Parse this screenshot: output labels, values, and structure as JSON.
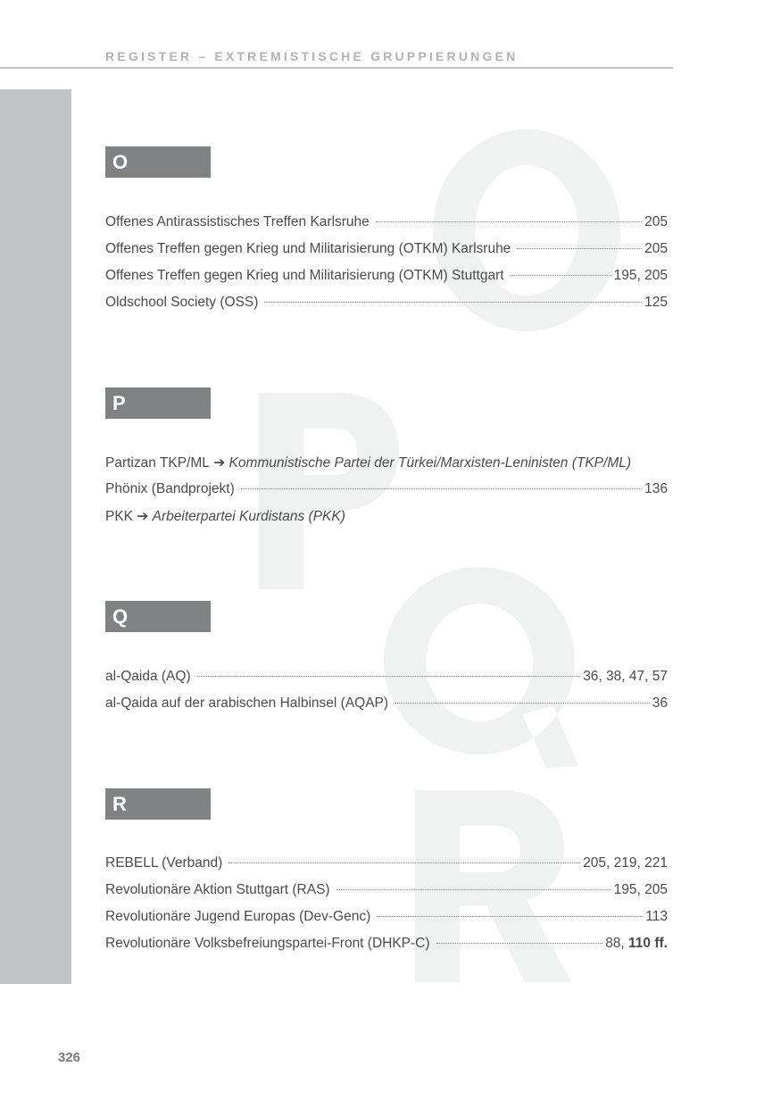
{
  "header": "REGISTER – EXTREMISTISCHE GRUPPIERUNGEN",
  "page_number": "326",
  "sections": [
    {
      "letter": "O",
      "entries": [
        {
          "name": "Offenes Antirassistisches Treffen Karlsruhe",
          "pages": "205"
        },
        {
          "name": "Offenes Treffen gegen Krieg und Militarisierung (OTKM) Karlsruhe",
          "pages": "205"
        },
        {
          "name": "Offenes Treffen gegen Krieg und Militarisierung (OTKM) Stuttgart",
          "pages": "195, 205"
        },
        {
          "name": "Oldschool Society (OSS)",
          "pages": "125"
        }
      ]
    },
    {
      "letter": "P",
      "entries": [
        {
          "name": "Partizan TKP/ML",
          "arrow": "➔",
          "ref": "Kommunistische Partei der Türkei/Marxisten-Leninisten (TKP/ML)"
        },
        {
          "name": "Phönix (Bandprojekt)",
          "pages": "136"
        },
        {
          "name": "PKK",
          "arrow": "➔",
          "ref": "Arbeiterpartei Kurdistans (PKK)"
        }
      ]
    },
    {
      "letter": "Q",
      "entries": [
        {
          "name": "al-Qaida (AQ)",
          "pages": "36, 38, 47, 57"
        },
        {
          "name": "al-Qaida auf der arabischen Halbinsel (AQAP)",
          "pages": "36"
        }
      ]
    },
    {
      "letter": "R",
      "entries": [
        {
          "name": "REBELL (Verband)",
          "pages": "205, 219, 221"
        },
        {
          "name": "Revolutionäre Aktion Stuttgart (RAS)",
          "pages": "195, 205"
        },
        {
          "name": "Revolutionäre Jugend Europas (Dev-Genc)",
          "pages": "113"
        },
        {
          "name": "Revolutionäre Volksbefreiungspartei-Front (DHKP-C)",
          "pages": "88, ",
          "pages_bold": "110 ff."
        }
      ]
    }
  ]
}
